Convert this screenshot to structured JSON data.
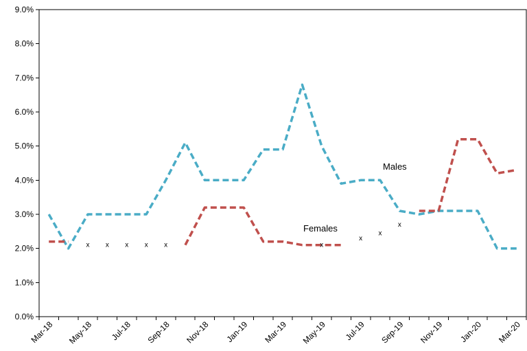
{
  "chart_data": {
    "type": "line",
    "title": "",
    "xlabel": "",
    "ylabel": "",
    "ylim": [
      0,
      9
    ],
    "y_ticks": [
      0,
      1,
      2,
      3,
      4,
      5,
      6,
      7,
      8,
      9
    ],
    "y_tick_labels": [
      "0.0%",
      "1.0%",
      "2.0%",
      "3.0%",
      "4.0%",
      "5.0%",
      "6.0%",
      "7.0%",
      "8.0%",
      "9.0%"
    ],
    "categories": [
      "Mar-18",
      "Apr-18",
      "May-18",
      "Jun-18",
      "Jul-18",
      "Aug-18",
      "Sep-18",
      "Oct-18",
      "Nov-18",
      "Dec-18",
      "Jan-19",
      "Feb-19",
      "Mar-19",
      "Apr-19",
      "May-19",
      "Jun-19",
      "Jul-19",
      "Aug-19",
      "Sep-19",
      "Oct-19",
      "Nov-19",
      "Dec-19",
      "Jan-20",
      "Feb-20",
      "Mar-20"
    ],
    "x_tick_labels": [
      "Mar-18",
      "May-18",
      "Jul-18",
      "Sep-18",
      "Nov-18",
      "Jan-19",
      "Mar-19",
      "May-19",
      "Jul-19",
      "Sep-19",
      "Nov-19",
      "Jan-20",
      "Mar-20"
    ],
    "series": [
      {
        "name": "Males",
        "color": "#4aacc6",
        "values": [
          3.0,
          2.0,
          3.0,
          3.0,
          3.0,
          3.0,
          4.0,
          5.1,
          4.0,
          4.0,
          4.0,
          4.9,
          4.9,
          6.8,
          5.0,
          3.9,
          4.0,
          4.0,
          3.1,
          3.0,
          3.1,
          3.1,
          3.1,
          2.0,
          2.0
        ]
      },
      {
        "name": "Females",
        "color": "#c0504d",
        "values": [
          2.2,
          2.2,
          null,
          null,
          null,
          null,
          null,
          2.1,
          3.2,
          3.2,
          3.2,
          2.2,
          2.2,
          2.1,
          2.1,
          2.1,
          null,
          null,
          null,
          3.1,
          3.1,
          5.2,
          5.2,
          4.2,
          4.3
        ]
      }
    ],
    "suppressed_marker": "x",
    "suppressed_points": [
      {
        "x": "May-18",
        "y": 2.1
      },
      {
        "x": "Jun-18",
        "y": 2.1
      },
      {
        "x": "Jul-18",
        "y": 2.1
      },
      {
        "x": "Aug-18",
        "y": 2.1
      },
      {
        "x": "Sep-18",
        "y": 2.1
      },
      {
        "x": "May-19",
        "y": 2.1
      },
      {
        "x": "Jul-19",
        "y": 2.3
      },
      {
        "x": "Aug-19",
        "y": 2.45
      },
      {
        "x": "Sep-19",
        "y": 2.7
      }
    ],
    "grid": false,
    "legend": "none"
  }
}
